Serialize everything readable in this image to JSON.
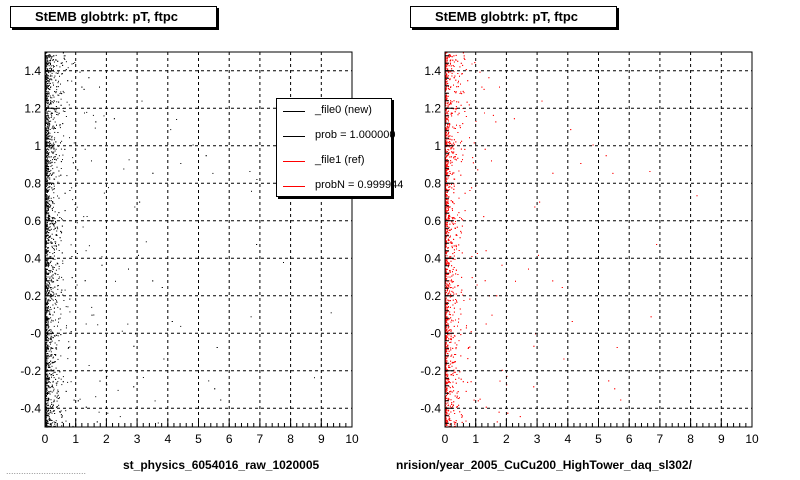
{
  "footer_text": "................................",
  "panels": [
    {
      "title": "StEMB globtrk: pT, ftpc",
      "x_caption": "st_physics_6054016_raw_1020005"
    },
    {
      "title": "StEMB globtrk: pT, ftpc",
      "x_caption": "nrision/year_2005_CuCu200_HighTower_daq_sl302/"
    }
  ],
  "legend": [
    {
      "label": "_file0 (new)",
      "color": "#000000"
    },
    {
      "label": "prob = 1.000000",
      "color": "#000000"
    },
    {
      "label": "_file1 (ref)",
      "color": "#ff0000"
    },
    {
      "label": "probN = 0.999944",
      "color": "#ff0000"
    }
  ],
  "chart_data": [
    {
      "type": "scatter",
      "title": "StEMB globtrk: pT, ftpc",
      "xlabel": "st_physics_6054016_raw_1020005",
      "ylabel": "",
      "xlim": [
        0,
        10
      ],
      "ylim": [
        -0.5,
        1.5
      ],
      "x_ticks": [
        "0",
        "1",
        "2",
        "3",
        "4",
        "5",
        "6",
        "7",
        "8",
        "9",
        "10"
      ],
      "y_ticks": [
        "-0.4",
        "-0.2",
        "-0",
        "0.2",
        "0.4",
        "0.6",
        "0.8",
        "1",
        "1.2",
        "1.4"
      ],
      "grid": true,
      "series": [
        {
          "color": "#000000",
          "description_of_density": "dense band for x 0 to 0.6, sparse to x 1.2, scattered out to x 10",
          "x_density_profile": [
            [
              0.0,
              0.55
            ],
            [
              0.3,
              0.3
            ],
            [
              0.6,
              0.09
            ],
            [
              1.0,
              0.03
            ],
            [
              2.0,
              0.015
            ],
            [
              10.0,
              0.002
            ]
          ]
        }
      ]
    },
    {
      "type": "scatter",
      "title": "StEMB globtrk: pT, ftpc",
      "xlabel": "nrision/year_2005_CuCu200_HighTower_daq_sl302/",
      "ylabel": "",
      "xlim": [
        0,
        10
      ],
      "ylim": [
        -0.5,
        1.5
      ],
      "x_ticks": [
        "0",
        "1",
        "2",
        "3",
        "4",
        "5",
        "6",
        "7",
        "8",
        "9",
        "10"
      ],
      "y_ticks": [
        "-0.4",
        "-0.2",
        "-0",
        "0.2",
        "0.4",
        "0.6",
        "0.8",
        "1",
        "1.2",
        "1.4"
      ],
      "grid": true,
      "series": [
        {
          "color": "#ff0000",
          "description_of_density": "dense band for x 0 to 0.5, sparse to x 1.2, scattered out to x 10",
          "x_density_profile": [
            [
              0.0,
              0.55
            ],
            [
              0.3,
              0.3
            ],
            [
              0.6,
              0.09
            ],
            [
              1.0,
              0.03
            ],
            [
              2.0,
              0.015
            ],
            [
              10.0,
              0.002
            ]
          ]
        }
      ]
    }
  ]
}
